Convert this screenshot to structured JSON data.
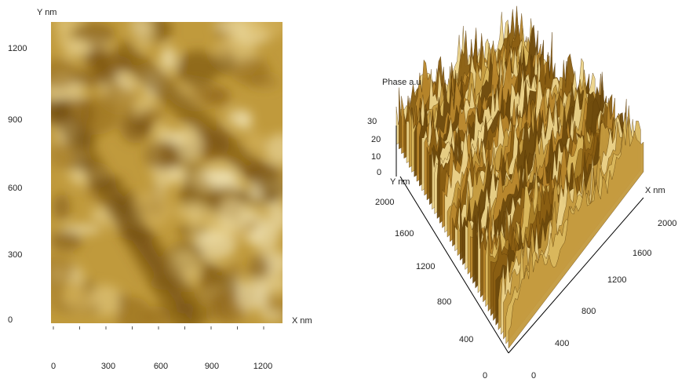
{
  "left_image": {
    "y_axis_label": "Y nm",
    "x_axis_label": "X nm",
    "y_ticks": [
      "1200",
      "900",
      "600",
      "300",
      "0"
    ],
    "x_ticks": [
      "0",
      "300",
      "600",
      "900",
      "1200"
    ]
  },
  "right_image": {
    "z_axis_label": "Phase a.u",
    "z_ticks": [
      "30",
      "20",
      "10",
      "0"
    ],
    "y_axis_label": "Y nm",
    "y_ticks": [
      "2000",
      "1600",
      "1200",
      "800",
      "400",
      "0"
    ],
    "x_axis_label": "X nm",
    "x_ticks": [
      "0",
      "400",
      "800",
      "1200",
      "1600",
      "2000"
    ]
  }
}
